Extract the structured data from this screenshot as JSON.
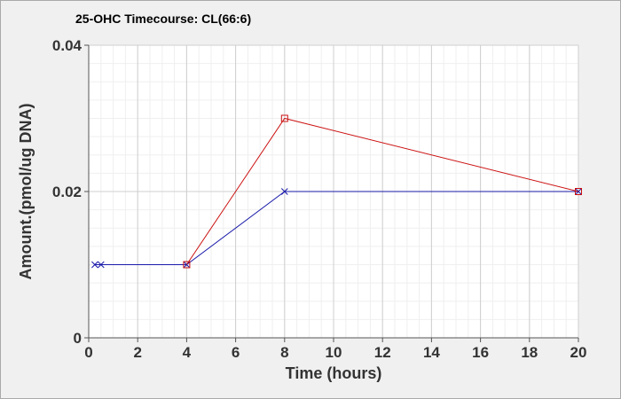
{
  "chart_data": {
    "type": "line",
    "title": "25-OHC Timecourse: CL(66:6)",
    "xlabel": "Time (hours)",
    "ylabel": "Amount.(pmol/ug DNA)",
    "xlim": [
      0,
      20
    ],
    "ylim": [
      0,
      0.04
    ],
    "xticks": [
      0,
      2,
      4,
      6,
      8,
      10,
      12,
      14,
      16,
      18,
      20
    ],
    "yticks": [
      0,
      0.02,
      0.04
    ],
    "ytick_labels": [
      "0",
      "0.02",
      "0.04"
    ],
    "grid": true,
    "series": [
      {
        "color": "#1a1aaa",
        "marker": "x",
        "x": [
          0.25,
          0.5,
          4,
          8,
          20
        ],
        "y": [
          0.01,
          0.01,
          0.01,
          0.02,
          0.02
        ]
      },
      {
        "color": "#cc1111",
        "marker": "square",
        "x": [
          4,
          8,
          20
        ],
        "y": [
          0.01,
          0.03,
          0.02
        ]
      }
    ]
  }
}
